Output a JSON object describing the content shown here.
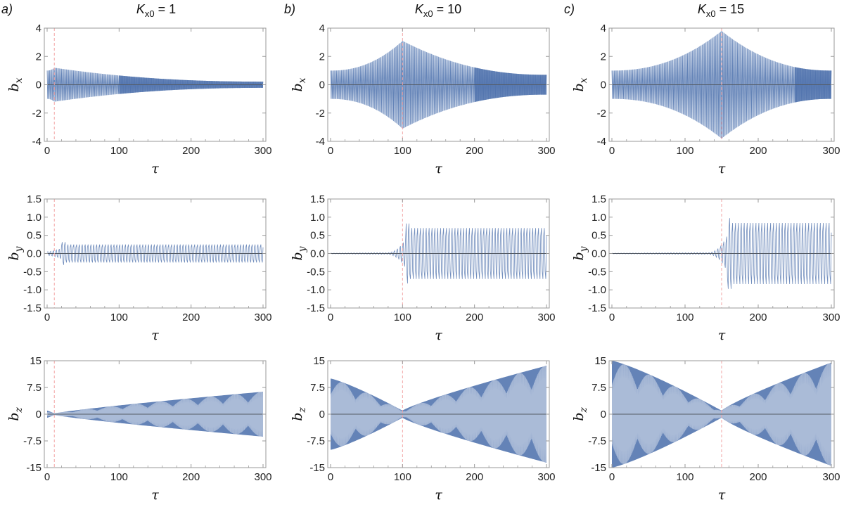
{
  "columns": [
    {
      "letter": "a)",
      "title_main": "K",
      "title_sub": "x0",
      "title_rest": " = 1"
    },
    {
      "letter": "b)",
      "title_main": "K",
      "title_sub": "x0",
      "title_rest": " = 10"
    },
    {
      "letter": "c)",
      "title_main": "K",
      "title_sub": "x0",
      "title_rest": " = 15"
    }
  ],
  "colors": {
    "signal": "#4f72ad",
    "signal_light": "#b8c8e2",
    "zero_line": "#555c66",
    "marker": "#f2a3a3",
    "frame": "#9a9a9a"
  },
  "chart_data": [
    {
      "id": "a-bx",
      "type": "line",
      "column": 0,
      "row": 0,
      "ylabel_main": "b",
      "ylabel_sub": "x",
      "xlabel": "τ",
      "xlim": [
        0,
        300
      ],
      "ylim": [
        -4,
        4
      ],
      "xticks": [
        0,
        100,
        200,
        300
      ],
      "yticks": [
        -4,
        -2,
        0,
        2,
        4
      ],
      "ytick_labels": [
        "-4",
        "-2",
        "0",
        "2",
        "4"
      ],
      "marker_x": 10,
      "amp_start": 1.0,
      "amp_peak": 1.2,
      "amp_end": 0.22,
      "peak_x": 10,
      "dense_from": 100
    },
    {
      "id": "b-bx",
      "type": "line",
      "column": 1,
      "row": 0,
      "ylabel_main": "b",
      "ylabel_sub": "x",
      "xlabel": "τ",
      "xlim": [
        0,
        300
      ],
      "ylim": [
        -4,
        4
      ],
      "xticks": [
        0,
        100,
        200,
        300
      ],
      "yticks": [
        -4,
        -2,
        0,
        2,
        4
      ],
      "ytick_labels": [
        "-4",
        "-2",
        "0",
        "2",
        "4"
      ],
      "marker_x": 100,
      "amp_start": 1.0,
      "amp_peak": 3.1,
      "amp_end": 0.7,
      "peak_x": 100,
      "dense_from": 200
    },
    {
      "id": "c-bx",
      "type": "line",
      "column": 2,
      "row": 0,
      "ylabel_main": "b",
      "ylabel_sub": "x",
      "xlabel": "τ",
      "xlim": [
        0,
        300
      ],
      "ylim": [
        -4,
        4
      ],
      "xticks": [
        0,
        100,
        200,
        300
      ],
      "yticks": [
        -4,
        -2,
        0,
        2,
        4
      ],
      "ytick_labels": [
        "-4",
        "-2",
        "0",
        "2",
        "4"
      ],
      "marker_x": 150,
      "amp_start": 1.0,
      "amp_peak": 3.8,
      "amp_end": 1.0,
      "peak_x": 150,
      "dense_from": 250
    },
    {
      "id": "a-by",
      "type": "line",
      "column": 0,
      "row": 1,
      "ylabel_main": "b",
      "ylabel_sub": "y",
      "xlabel": "τ",
      "xlim": [
        0,
        300
      ],
      "ylim": [
        -1.5,
        1.5
      ],
      "xticks": [
        0,
        100,
        200,
        300
      ],
      "yticks": [
        -1.5,
        -1.0,
        -0.5,
        0.0,
        0.5,
        1.0,
        1.5
      ],
      "ytick_labels": [
        "-1.5",
        "-1.0",
        "-0.5",
        "0.0",
        "0.5",
        "1.0",
        "1.5"
      ],
      "marker_x": 10,
      "amp_before": 0.05,
      "amp_after": 0.3,
      "overshoot": 0.38,
      "switch_x": 20
    },
    {
      "id": "b-by",
      "type": "line",
      "column": 1,
      "row": 1,
      "ylabel_main": "b",
      "ylabel_sub": "y",
      "xlabel": "τ",
      "xlim": [
        0,
        300
      ],
      "ylim": [
        -1.5,
        1.5
      ],
      "xticks": [
        0,
        100,
        200,
        300
      ],
      "yticks": [
        -1.5,
        -1.0,
        -0.5,
        0.0,
        0.5,
        1.0,
        1.5
      ],
      "ytick_labels": [
        "-1.5",
        "-1.0",
        "-0.5",
        "0.0",
        "0.5",
        "1.0",
        "1.5"
      ],
      "marker_x": 100,
      "amp_before": 0.02,
      "amp_after": 0.85,
      "overshoot": 1.0,
      "switch_x": 105
    },
    {
      "id": "c-by",
      "type": "line",
      "column": 2,
      "row": 1,
      "ylabel_main": "b",
      "ylabel_sub": "y",
      "xlabel": "τ",
      "xlim": [
        0,
        300
      ],
      "ylim": [
        -1.5,
        1.5
      ],
      "xticks": [
        0,
        100,
        200,
        300
      ],
      "yticks": [
        -1.5,
        -1.0,
        -0.5,
        0.0,
        0.5,
        1.0,
        1.5
      ],
      "ytick_labels": [
        "-1.5",
        "-1.0",
        "-0.5",
        "0.0",
        "0.5",
        "1.0",
        "1.5"
      ],
      "marker_x": 150,
      "amp_before": 0.02,
      "amp_after": 1.02,
      "overshoot": 1.18,
      "switch_x": 158
    },
    {
      "id": "a-bz",
      "type": "area",
      "column": 0,
      "row": 2,
      "ylabel_main": "b",
      "ylabel_sub": "z",
      "xlabel": "τ",
      "xlim": [
        0,
        300
      ],
      "ylim": [
        -15,
        15
      ],
      "xticks": [
        0,
        100,
        200,
        300
      ],
      "yticks": [
        -15,
        -7.5,
        0,
        7.5,
        15
      ],
      "ytick_labels": [
        "-15",
        "-7.5",
        "0",
        "7.5",
        "15"
      ],
      "marker_x": 10,
      "min_x": 10,
      "amp_start": 1.0,
      "amp_min": 0.2,
      "amp_end": 6.3
    },
    {
      "id": "b-bz",
      "type": "area",
      "column": 1,
      "row": 2,
      "ylabel_main": "b",
      "ylabel_sub": "z",
      "xlabel": "τ",
      "xlim": [
        0,
        300
      ],
      "ylim": [
        -15,
        15
      ],
      "xticks": [
        0,
        100,
        200,
        300
      ],
      "yticks": [
        -15,
        -7.5,
        0,
        7.5,
        15
      ],
      "ytick_labels": [
        "-15",
        "-7.5",
        "0",
        "7.5",
        "15"
      ],
      "marker_x": 100,
      "min_x": 100,
      "amp_start": 10.0,
      "amp_min": 1.0,
      "amp_end": 13.6
    },
    {
      "id": "c-bz",
      "type": "area",
      "column": 2,
      "row": 2,
      "ylabel_main": "b",
      "ylabel_sub": "z",
      "xlabel": "τ",
      "xlim": [
        0,
        300
      ],
      "ylim": [
        -15,
        15
      ],
      "xticks": [
        0,
        100,
        200,
        300
      ],
      "yticks": [
        -15,
        -7.5,
        0,
        7.5,
        15
      ],
      "ytick_labels": [
        "-15",
        "-7.5",
        "0",
        "7.5",
        "15"
      ],
      "marker_x": 150,
      "min_x": 150,
      "amp_start": 15.0,
      "amp_min": 1.0,
      "amp_end": 14.5
    }
  ]
}
